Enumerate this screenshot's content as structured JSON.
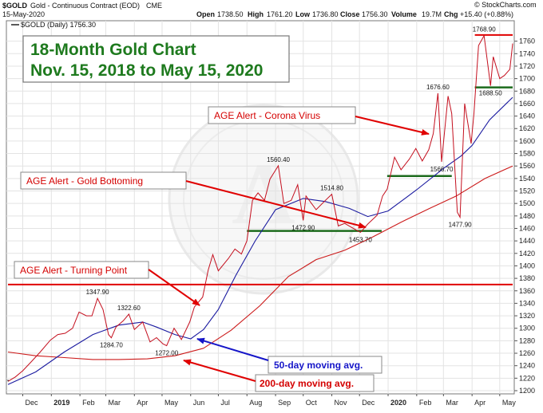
{
  "header": {
    "symbol": "$GOLD",
    "name": "Gold - Continuous Contract (EOD)",
    "exchange": "CME",
    "date": "15-May-2020",
    "open_label": "Open",
    "open": "1738.50",
    "high_label": "High",
    "high": "1761.20",
    "low_label": "Low",
    "low": "1736.80",
    "close_value": "1756.30",
    "volume_label": "Volume",
    "volume": "19.7M",
    "chg_label": "Chg",
    "chg": "+15.40 (+0.88%)",
    "brand": "© StockCharts.com",
    "legend": "$GOLD (Daily) 1756.30"
  },
  "title": {
    "line1": "18-Month Gold Chart",
    "line2": "Nov. 15, 2018 to May 15, 2020"
  },
  "callouts": {
    "corona": "AGE Alert - Corona Virus",
    "bottoming": "AGE Alert - Gold Bottoming",
    "turning": "AGE Alert - Turning Point"
  },
  "ma_labels": {
    "ma50": "50-day moving avg.",
    "ma200": "200-day moving avg."
  },
  "colors": {
    "price": "#c40f1e",
    "ma50": "#1a1aa0",
    "ma200": "#cc1a1a",
    "support": "#1c6b1c",
    "resistance": "#e00000",
    "title_green": "#1e7a1e"
  },
  "chart_data": {
    "type": "line",
    "ylim": [
      1200,
      1780
    ],
    "y_ticks": [
      1200,
      1220,
      1240,
      1260,
      1280,
      1300,
      1320,
      1340,
      1360,
      1380,
      1400,
      1420,
      1440,
      1460,
      1480,
      1500,
      1520,
      1540,
      1560,
      1580,
      1600,
      1620,
      1640,
      1660,
      1680,
      1700,
      1720,
      1740,
      1760
    ],
    "x_ticks": [
      {
        "label": "Dec",
        "date": "2018-12-01",
        "bold": false
      },
      {
        "label": "2019",
        "date": "2019-01-01",
        "bold": true
      },
      {
        "label": "Feb",
        "date": "2019-02-01",
        "bold": false
      },
      {
        "label": "Mar",
        "date": "2019-03-01",
        "bold": false
      },
      {
        "label": "Apr",
        "date": "2019-04-01",
        "bold": false
      },
      {
        "label": "May",
        "date": "2019-05-01",
        "bold": false
      },
      {
        "label": "Jun",
        "date": "2019-06-01",
        "bold": false
      },
      {
        "label": "Jul",
        "date": "2019-07-01",
        "bold": false
      },
      {
        "label": "Aug",
        "date": "2019-08-01",
        "bold": false
      },
      {
        "label": "Sep",
        "date": "2019-09-01",
        "bold": false
      },
      {
        "label": "Oct",
        "date": "2019-10-01",
        "bold": false
      },
      {
        "label": "Nov",
        "date": "2019-11-01",
        "bold": false
      },
      {
        "label": "Dec",
        "date": "2019-12-01",
        "bold": false
      },
      {
        "label": "2020",
        "date": "2020-01-01",
        "bold": true
      },
      {
        "label": "Feb",
        "date": "2020-02-01",
        "bold": false
      },
      {
        "label": "Mar",
        "date": "2020-03-01",
        "bold": false
      },
      {
        "label": "Apr",
        "date": "2020-04-01",
        "bold": false
      },
      {
        "label": "May",
        "date": "2020-05-01",
        "bold": false
      }
    ],
    "price": [
      [
        "2018-11-15",
        1215
      ],
      [
        "2018-11-23",
        1222
      ],
      [
        "2018-12-01",
        1232
      ],
      [
        "2018-12-10",
        1246
      ],
      [
        "2018-12-20",
        1262
      ],
      [
        "2018-12-31",
        1281
      ],
      [
        "2019-01-08",
        1290
      ],
      [
        "2019-01-16",
        1292
      ],
      [
        "2019-01-24",
        1300
      ],
      [
        "2019-01-31",
        1326
      ],
      [
        "2019-02-08",
        1320
      ],
      [
        "2019-02-14",
        1320
      ],
      [
        "2019-02-20",
        1347.9
      ],
      [
        "2019-02-26",
        1330
      ],
      [
        "2019-03-04",
        1290
      ],
      [
        "2019-03-07",
        1284.7
      ],
      [
        "2019-03-12",
        1302
      ],
      [
        "2019-03-20",
        1312
      ],
      [
        "2019-03-26",
        1322.6
      ],
      [
        "2019-04-01",
        1298
      ],
      [
        "2019-04-10",
        1310
      ],
      [
        "2019-04-18",
        1278
      ],
      [
        "2019-04-25",
        1285
      ],
      [
        "2019-05-02",
        1275
      ],
      [
        "2019-05-06",
        1272
      ],
      [
        "2019-05-14",
        1300
      ],
      [
        "2019-05-22",
        1282
      ],
      [
        "2019-05-31",
        1310
      ],
      [
        "2019-06-05",
        1334
      ],
      [
        "2019-06-14",
        1350
      ],
      [
        "2019-06-20",
        1393
      ],
      [
        "2019-06-25",
        1418
      ],
      [
        "2019-07-01",
        1392
      ],
      [
        "2019-07-12",
        1412
      ],
      [
        "2019-07-19",
        1427
      ],
      [
        "2019-07-26",
        1419
      ],
      [
        "2019-08-01",
        1440
      ],
      [
        "2019-08-07",
        1505
      ],
      [
        "2019-08-13",
        1517
      ],
      [
        "2019-08-20",
        1505
      ],
      [
        "2019-08-26",
        1539
      ],
      [
        "2019-09-04",
        1560.4
      ],
      [
        "2019-09-10",
        1500
      ],
      [
        "2019-09-18",
        1505
      ],
      [
        "2019-09-25",
        1530
      ],
      [
        "2019-10-01",
        1472.9
      ],
      [
        "2019-10-04",
        1512
      ],
      [
        "2019-10-15",
        1490
      ],
      [
        "2019-10-25",
        1505
      ],
      [
        "2019-11-01",
        1514.8
      ],
      [
        "2019-11-08",
        1464
      ],
      [
        "2019-11-15",
        1468
      ],
      [
        "2019-11-22",
        1462
      ],
      [
        "2019-12-02",
        1453.7
      ],
      [
        "2019-12-10",
        1467
      ],
      [
        "2019-12-20",
        1481
      ],
      [
        "2019-12-26",
        1512
      ],
      [
        "2019-12-31",
        1523
      ],
      [
        "2020-01-08",
        1574
      ],
      [
        "2020-01-15",
        1554
      ],
      [
        "2020-01-24",
        1571
      ],
      [
        "2020-01-31",
        1588
      ],
      [
        "2020-02-07",
        1568
      ],
      [
        "2020-02-14",
        1586
      ],
      [
        "2020-02-19",
        1612
      ],
      [
        "2020-02-24",
        1676.6
      ],
      [
        "2020-02-28",
        1566.7
      ],
      [
        "2020-03-06",
        1672
      ],
      [
        "2020-03-10",
        1644
      ],
      [
        "2020-03-16",
        1486
      ],
      [
        "2020-03-19",
        1477.9
      ],
      [
        "2020-03-24",
        1660
      ],
      [
        "2020-03-31",
        1596
      ],
      [
        "2020-04-03",
        1644
      ],
      [
        "2020-04-08",
        1753
      ],
      [
        "2020-04-14",
        1768.9
      ],
      [
        "2020-04-21",
        1688.5
      ],
      [
        "2020-04-24",
        1735
      ],
      [
        "2020-05-01",
        1700
      ],
      [
        "2020-05-06",
        1705
      ],
      [
        "2020-05-12",
        1715
      ],
      [
        "2020-05-15",
        1756.3
      ]
    ],
    "ma50": [
      [
        "2018-11-15",
        1210
      ],
      [
        "2018-12-15",
        1230
      ],
      [
        "2019-01-15",
        1262
      ],
      [
        "2019-02-15",
        1290
      ],
      [
        "2019-03-15",
        1305
      ],
      [
        "2019-04-10",
        1310
      ],
      [
        "2019-04-25",
        1302
      ],
      [
        "2019-05-15",
        1290
      ],
      [
        "2019-06-01",
        1283
      ],
      [
        "2019-06-15",
        1298
      ],
      [
        "2019-07-01",
        1330
      ],
      [
        "2019-07-20",
        1385
      ],
      [
        "2019-08-10",
        1440
      ],
      [
        "2019-09-01",
        1490
      ],
      [
        "2019-10-01",
        1508
      ],
      [
        "2019-10-25",
        1503
      ],
      [
        "2019-11-20",
        1492
      ],
      [
        "2019-12-10",
        1479
      ],
      [
        "2020-01-01",
        1488
      ],
      [
        "2020-02-01",
        1522
      ],
      [
        "2020-03-01",
        1556
      ],
      [
        "2020-03-20",
        1576
      ],
      [
        "2020-04-01",
        1593
      ],
      [
        "2020-04-20",
        1634
      ],
      [
        "2020-05-15",
        1670
      ]
    ],
    "ma200": [
      [
        "2018-11-15",
        1262
      ],
      [
        "2018-12-15",
        1256
      ],
      [
        "2019-01-15",
        1253
      ],
      [
        "2019-02-15",
        1250
      ],
      [
        "2019-03-15",
        1250
      ],
      [
        "2019-04-15",
        1251
      ],
      [
        "2019-05-15",
        1256
      ],
      [
        "2019-06-15",
        1268
      ],
      [
        "2019-07-15",
        1297
      ],
      [
        "2019-08-15",
        1336
      ],
      [
        "2019-09-15",
        1383
      ],
      [
        "2019-10-15",
        1410
      ],
      [
        "2019-11-15",
        1425
      ],
      [
        "2019-12-15",
        1446
      ],
      [
        "2020-01-15",
        1470
      ],
      [
        "2020-02-15",
        1492
      ],
      [
        "2020-03-15",
        1512
      ],
      [
        "2020-04-15",
        1540
      ],
      [
        "2020-05-15",
        1560
      ]
    ],
    "point_labels": [
      {
        "text": "1347.90",
        "date": "2019-02-20",
        "value": 1347.9,
        "pos": "above"
      },
      {
        "text": "1322.60",
        "date": "2019-03-26",
        "value": 1322.6,
        "pos": "above"
      },
      {
        "text": "1284.70",
        "date": "2019-03-07",
        "value": 1284.7,
        "pos": "below"
      },
      {
        "text": "1272.00",
        "date": "2019-05-06",
        "value": 1272.0,
        "pos": "below"
      },
      {
        "text": "1560.40",
        "date": "2019-09-04",
        "value": 1560.4,
        "pos": "above"
      },
      {
        "text": "1514.80",
        "date": "2019-11-01",
        "value": 1514.8,
        "pos": "above"
      },
      {
        "text": "1472.90",
        "date": "2019-10-01",
        "value": 1472.9,
        "pos": "below"
      },
      {
        "text": "1453.70",
        "date": "2019-12-02",
        "value": 1453.7,
        "pos": "below"
      },
      {
        "text": "1676.60",
        "date": "2020-02-24",
        "value": 1676.6,
        "pos": "above"
      },
      {
        "text": "1566.70",
        "date": "2020-02-28",
        "value": 1566.7,
        "pos": "below"
      },
      {
        "text": "1477.90",
        "date": "2020-03-19",
        "value": 1477.9,
        "pos": "below"
      },
      {
        "text": "1768.90",
        "date": "2020-04-14",
        "value": 1768.9,
        "pos": "above"
      },
      {
        "text": "1688.50",
        "date": "2020-04-21",
        "value": 1688.5,
        "pos": "below"
      }
    ],
    "hlines": [
      {
        "kind": "resistance",
        "value": 1370,
        "from": "2018-11-15",
        "to": "2020-05-15"
      },
      {
        "kind": "support",
        "value": 1456,
        "from": "2019-08-01",
        "to": "2019-12-25"
      },
      {
        "kind": "support",
        "value": 1544,
        "from": "2019-12-31",
        "to": "2020-03-10"
      },
      {
        "kind": "support",
        "value": 1686,
        "from": "2020-04-04",
        "to": "2020-05-15"
      },
      {
        "kind": "resistance",
        "value": 1770,
        "from": "2020-04-04",
        "to": "2020-05-15"
      }
    ]
  }
}
